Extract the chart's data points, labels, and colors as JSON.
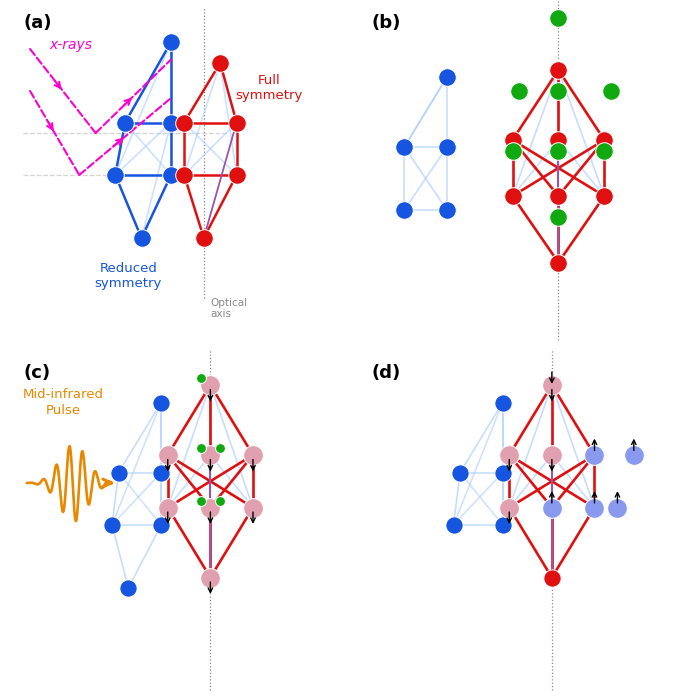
{
  "fig_bg": "#ffffff",
  "panel_labels": [
    "(a)",
    "(b)",
    "(c)",
    "(d)"
  ],
  "panel_label_color": "#000000",
  "panel_label_fontsize": 13,
  "xray_color": "#ff00cc",
  "xray_label": "x-rays",
  "optical_axis_label": "Optical\naxis",
  "full_sym_label": "Full\nsymmetry",
  "reduced_sym_label": "Reduced\nsymmetry",
  "mid_ir_label": "Mid-infrared\nPulse",
  "blue": "#1555e0",
  "red": "#e01010",
  "green": "#10aa10",
  "pink": "#e0a0b0",
  "orange": "#e88800",
  "lb": "#aaccff",
  "purple": "#9955aa",
  "gray": "#888888"
}
